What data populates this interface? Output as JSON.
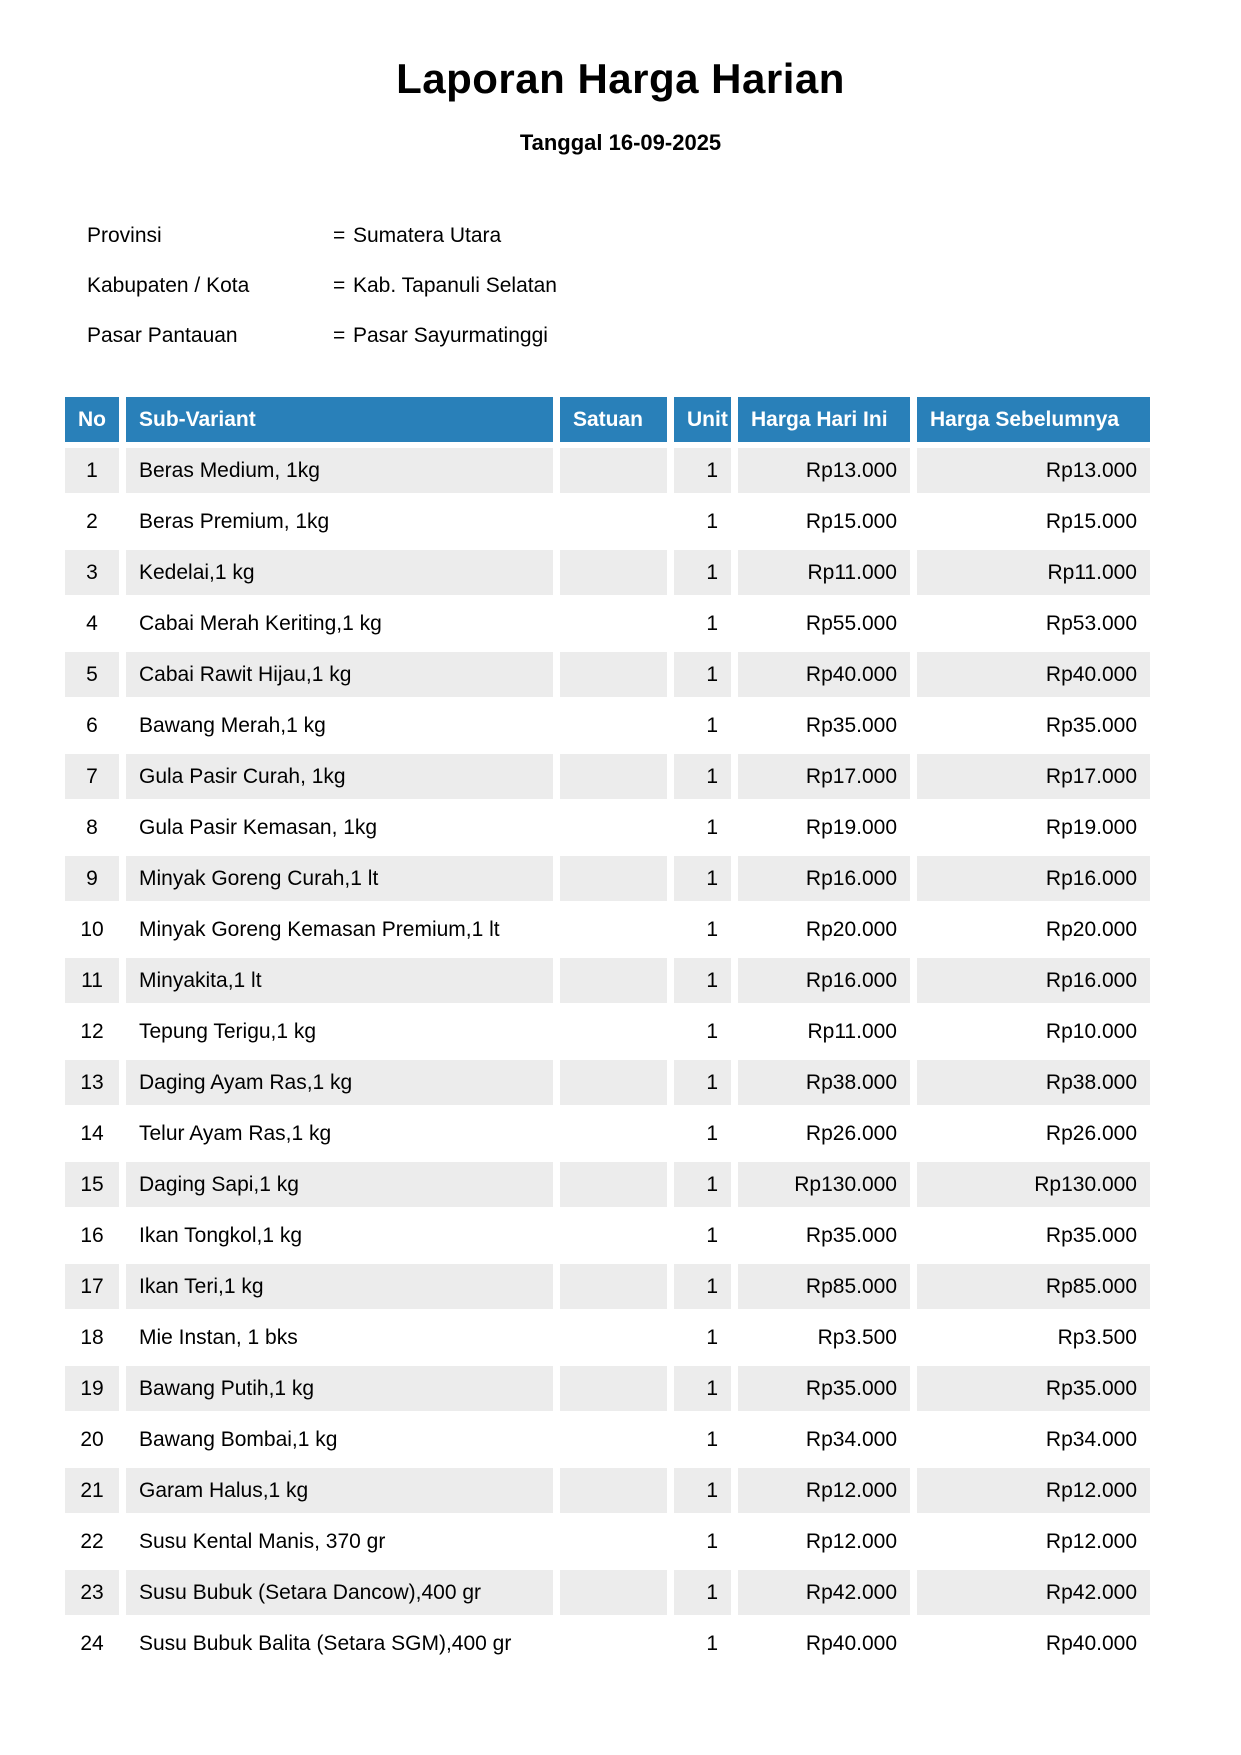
{
  "page": {
    "title": "Laporan Harga Harian",
    "subtitle": "Tanggal 16-09-2025"
  },
  "metadata": {
    "separator": "=",
    "fields": [
      {
        "label": "Provinsi",
        "value": "Sumatera Utara"
      },
      {
        "label": "Kabupaten / Kota",
        "value": "Kab. Tapanuli Selatan"
      },
      {
        "label": "Pasar Pantauan",
        "value": "Pasar Sayurmatinggi"
      }
    ]
  },
  "table": {
    "columns": [
      "No",
      "Sub-Variant",
      "Satuan",
      "Unit",
      "Harga Hari Ini",
      "Harga Sebelumnya"
    ],
    "rows": [
      {
        "no": "1",
        "sub_variant": "Beras Medium, 1kg",
        "satuan": "",
        "unit": "1",
        "harga_hari_ini": "Rp13.000",
        "harga_sebelumnya": "Rp13.000"
      },
      {
        "no": "2",
        "sub_variant": "Beras Premium, 1kg",
        "satuan": "",
        "unit": "1",
        "harga_hari_ini": "Rp15.000",
        "harga_sebelumnya": "Rp15.000"
      },
      {
        "no": "3",
        "sub_variant": "Kedelai,1 kg",
        "satuan": "",
        "unit": "1",
        "harga_hari_ini": "Rp11.000",
        "harga_sebelumnya": "Rp11.000"
      },
      {
        "no": "4",
        "sub_variant": "Cabai Merah Keriting,1 kg",
        "satuan": "",
        "unit": "1",
        "harga_hari_ini": "Rp55.000",
        "harga_sebelumnya": "Rp53.000"
      },
      {
        "no": "5",
        "sub_variant": "Cabai Rawit Hijau,1 kg",
        "satuan": "",
        "unit": "1",
        "harga_hari_ini": "Rp40.000",
        "harga_sebelumnya": "Rp40.000"
      },
      {
        "no": "6",
        "sub_variant": "Bawang Merah,1 kg",
        "satuan": "",
        "unit": "1",
        "harga_hari_ini": "Rp35.000",
        "harga_sebelumnya": "Rp35.000"
      },
      {
        "no": "7",
        "sub_variant": "Gula Pasir Curah, 1kg",
        "satuan": "",
        "unit": "1",
        "harga_hari_ini": "Rp17.000",
        "harga_sebelumnya": "Rp17.000"
      },
      {
        "no": "8",
        "sub_variant": "Gula Pasir Kemasan, 1kg",
        "satuan": "",
        "unit": "1",
        "harga_hari_ini": "Rp19.000",
        "harga_sebelumnya": "Rp19.000"
      },
      {
        "no": "9",
        "sub_variant": "Minyak Goreng Curah,1 lt",
        "satuan": "",
        "unit": "1",
        "harga_hari_ini": "Rp16.000",
        "harga_sebelumnya": "Rp16.000"
      },
      {
        "no": "10",
        "sub_variant": "Minyak Goreng Kemasan Premium,1 lt",
        "satuan": "",
        "unit": "1",
        "harga_hari_ini": "Rp20.000",
        "harga_sebelumnya": "Rp20.000"
      },
      {
        "no": "11",
        "sub_variant": "Minyakita,1 lt",
        "satuan": "",
        "unit": "1",
        "harga_hari_ini": "Rp16.000",
        "harga_sebelumnya": "Rp16.000"
      },
      {
        "no": "12",
        "sub_variant": "Tepung Terigu,1 kg",
        "satuan": "",
        "unit": "1",
        "harga_hari_ini": "Rp11.000",
        "harga_sebelumnya": "Rp10.000"
      },
      {
        "no": "13",
        "sub_variant": "Daging Ayam Ras,1 kg",
        "satuan": "",
        "unit": "1",
        "harga_hari_ini": "Rp38.000",
        "harga_sebelumnya": "Rp38.000"
      },
      {
        "no": "14",
        "sub_variant": "Telur Ayam Ras,1 kg",
        "satuan": "",
        "unit": "1",
        "harga_hari_ini": "Rp26.000",
        "harga_sebelumnya": "Rp26.000"
      },
      {
        "no": "15",
        "sub_variant": "Daging Sapi,1 kg",
        "satuan": "",
        "unit": "1",
        "harga_hari_ini": "Rp130.000",
        "harga_sebelumnya": "Rp130.000"
      },
      {
        "no": "16",
        "sub_variant": "Ikan Tongkol,1 kg",
        "satuan": "",
        "unit": "1",
        "harga_hari_ini": "Rp35.000",
        "harga_sebelumnya": "Rp35.000"
      },
      {
        "no": "17",
        "sub_variant": "Ikan Teri,1 kg",
        "satuan": "",
        "unit": "1",
        "harga_hari_ini": "Rp85.000",
        "harga_sebelumnya": "Rp85.000"
      },
      {
        "no": "18",
        "sub_variant": "Mie Instan, 1 bks",
        "satuan": "",
        "unit": "1",
        "harga_hari_ini": "Rp3.500",
        "harga_sebelumnya": "Rp3.500"
      },
      {
        "no": "19",
        "sub_variant": "Bawang Putih,1 kg",
        "satuan": "",
        "unit": "1",
        "harga_hari_ini": "Rp35.000",
        "harga_sebelumnya": "Rp35.000"
      },
      {
        "no": "20",
        "sub_variant": "Bawang Bombai,1 kg",
        "satuan": "",
        "unit": "1",
        "harga_hari_ini": "Rp34.000",
        "harga_sebelumnya": "Rp34.000"
      },
      {
        "no": "21",
        "sub_variant": "Garam Halus,1 kg",
        "satuan": "",
        "unit": "1",
        "harga_hari_ini": "Rp12.000",
        "harga_sebelumnya": "Rp12.000"
      },
      {
        "no": "22",
        "sub_variant": "Susu Kental Manis, 370 gr",
        "satuan": "",
        "unit": "1",
        "harga_hari_ini": "Rp12.000",
        "harga_sebelumnya": "Rp12.000"
      },
      {
        "no": "23",
        "sub_variant": "Susu Bubuk (Setara Dancow),400 gr",
        "satuan": "",
        "unit": "1",
        "harga_hari_ini": "Rp42.000",
        "harga_sebelumnya": "Rp42.000"
      },
      {
        "no": "24",
        "sub_variant": "Susu Bubuk Balita (Setara SGM),400 gr",
        "satuan": "",
        "unit": "1",
        "harga_hari_ini": "Rp40.000",
        "harga_sebelumnya": "Rp40.000"
      }
    ]
  },
  "colors": {
    "header_bg": "#2980b9",
    "header_text": "#ffffff",
    "row_alt_bg": "#ececec",
    "body_text": "#000000",
    "page_bg": "#ffffff"
  }
}
